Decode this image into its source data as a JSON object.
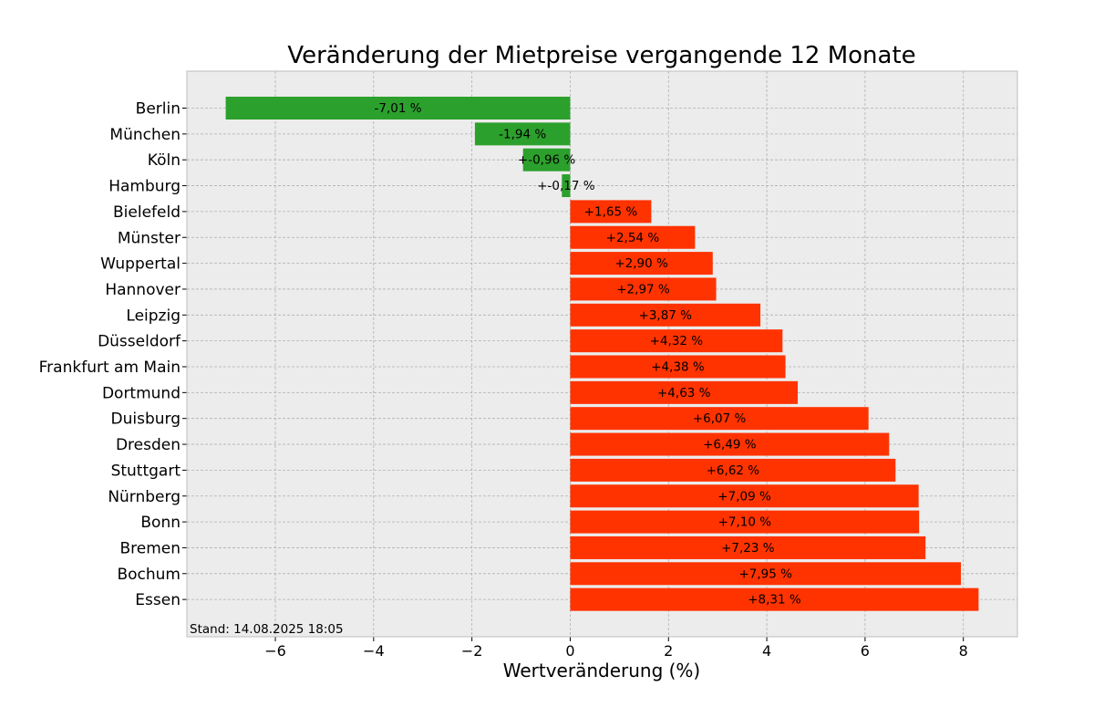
{
  "chart_data": {
    "type": "bar",
    "orientation": "horizontal",
    "title": "Veränderung der Mietpreise vergangende 12 Monate",
    "xlabel": "Wertveränderung (%)",
    "ylabel": "",
    "xlim": [
      -7.8,
      9.1
    ],
    "xticks": [
      -6,
      -4,
      -2,
      0,
      2,
      4,
      6,
      8
    ],
    "xtick_labels": [
      "−6",
      "−4",
      "−2",
      "0",
      "2",
      "4",
      "6",
      "8"
    ],
    "grid": true,
    "categories": [
      "Berlin",
      "München",
      "Köln",
      "Hamburg",
      "Bielefeld",
      "Münster",
      "Wuppertal",
      "Hannover",
      "Leipzig",
      "Düsseldorf",
      "Frankfurt am Main",
      "Dortmund",
      "Duisburg",
      "Dresden",
      "Stuttgart",
      "Nürnberg",
      "Bonn",
      "Bremen",
      "Bochum",
      "Essen"
    ],
    "values": [
      -7.01,
      -1.94,
      -0.96,
      -0.17,
      1.65,
      2.54,
      2.9,
      2.97,
      3.87,
      4.32,
      4.38,
      4.63,
      6.07,
      6.49,
      6.62,
      7.09,
      7.1,
      7.23,
      7.95,
      8.31
    ],
    "value_labels": [
      "-7,01 %",
      "-1,94 %",
      "+-0,96 %",
      "+-0,17 %",
      "+1,65 %",
      "+2,54 %",
      "+2,90 %",
      "+2,97 %",
      "+3,87 %",
      "+4,32 %",
      "+4,38 %",
      "+4,63 %",
      "+6,07 %",
      "+6,49 %",
      "+6,62 %",
      "+7,09 %",
      "+7,10 %",
      "+7,23 %",
      "+7,95 %",
      "+8,31 %"
    ],
    "annotation": "Stand: 14.08.2025 18:05",
    "colors": {
      "negative": "#2ca02c",
      "positive": "#ff3300",
      "plot_background": "#ececec",
      "grid": "#b0b0b0",
      "frame": "#bcbcbc"
    }
  }
}
